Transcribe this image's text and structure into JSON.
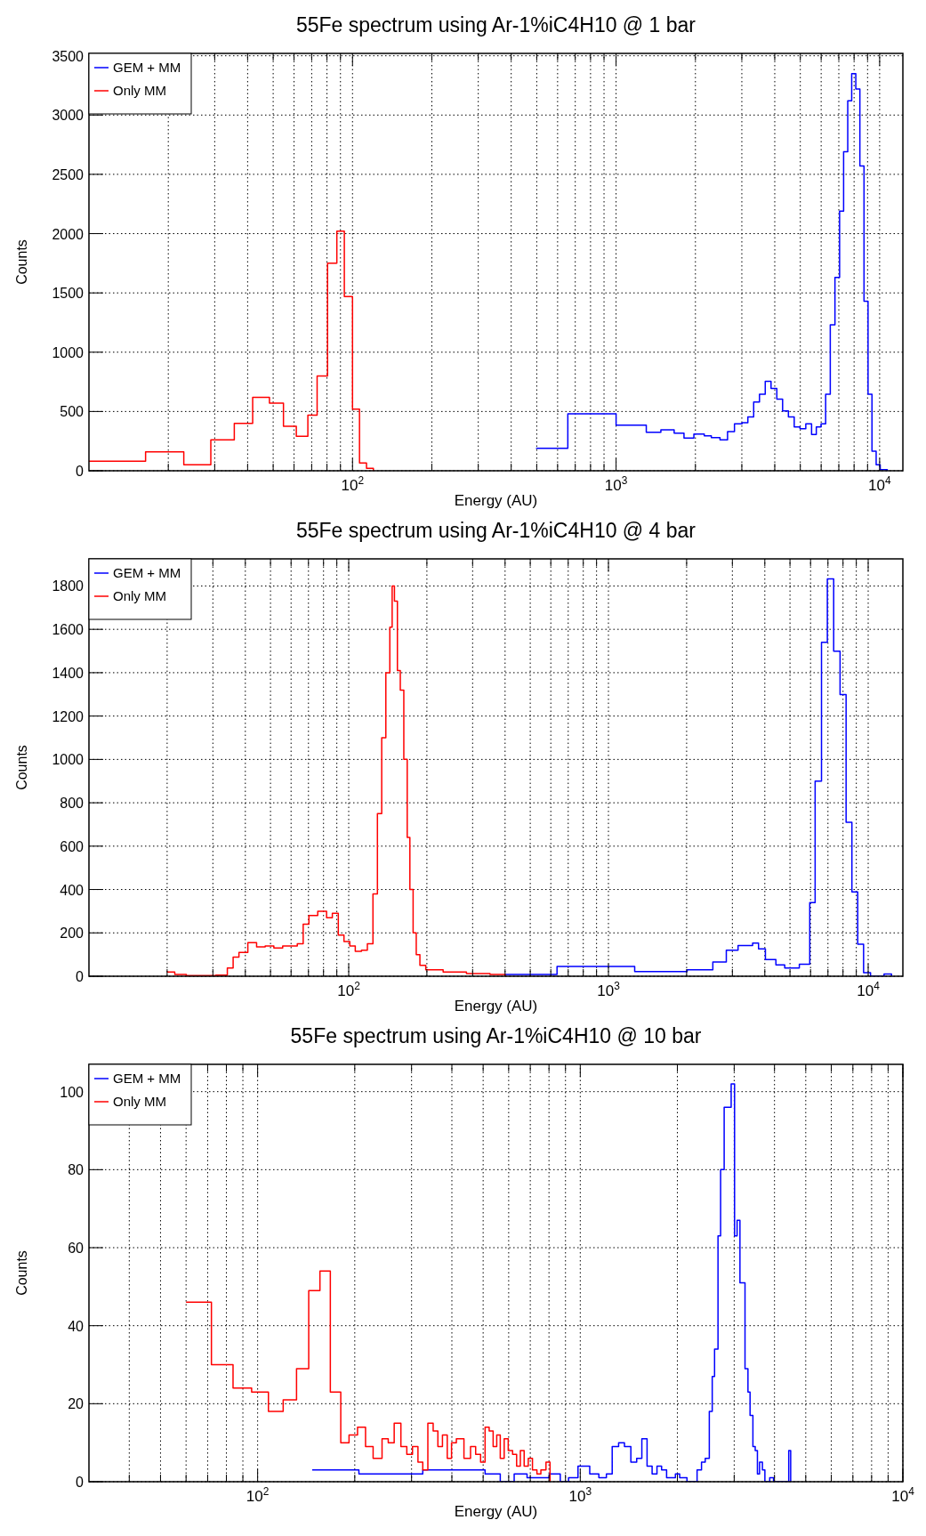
{
  "chart_data": [
    {
      "type": "step",
      "title": "55Fe spectrum using Ar-1%iC4H10 @ 1 bar",
      "xlabel": "Energy (AU)",
      "ylabel": "Counts",
      "log": "x",
      "grid": true,
      "legend": "top left",
      "xlim": [
        10,
        12250
      ],
      "ylim": [
        0,
        3520
      ],
      "xticks": [
        {
          "value": 20,
          "label": null
        },
        {
          "value": 30,
          "label": null
        },
        {
          "value": 40,
          "label": null
        },
        {
          "value": 50,
          "label": null
        },
        {
          "value": 60,
          "label": null
        },
        {
          "value": 70,
          "label": null
        },
        {
          "value": 80,
          "label": null
        },
        {
          "value": 90,
          "label": null
        },
        {
          "value": 100,
          "label": "10$^{2}$"
        },
        {
          "value": 200,
          "label": null
        },
        {
          "value": 300,
          "label": null
        },
        {
          "value": 400,
          "label": null
        },
        {
          "value": 500,
          "label": null
        },
        {
          "value": 600,
          "label": null
        },
        {
          "value": 700,
          "label": null
        },
        {
          "value": 800,
          "label": null
        },
        {
          "value": 900,
          "label": null
        },
        {
          "value": 1000,
          "label": "10$^{3}$"
        },
        {
          "value": 2000,
          "label": null
        },
        {
          "value": 3000,
          "label": null
        },
        {
          "value": 4000,
          "label": null
        },
        {
          "value": 5000,
          "label": null
        },
        {
          "value": 6000,
          "label": null
        },
        {
          "value": 7000,
          "label": null
        },
        {
          "value": 8000,
          "label": null
        },
        {
          "value": 9000,
          "label": null
        },
        {
          "value": 10000,
          "label": "10$^{4}$"
        }
      ],
      "yticks": [
        0,
        500,
        1000,
        1500,
        2000,
        2500,
        3000,
        3500
      ],
      "series": [
        {
          "name": "GEM + MM",
          "color": "#0000ff",
          "x": [
            497,
            656,
            1000,
            1302,
            1479,
            1661,
            1810,
            1973,
            2161,
            2298,
            2479,
            2648,
            2813,
            3005,
            3162,
            3327,
            3500,
            3681,
            3872,
            4073,
            4284,
            4507,
            4741,
            4987,
            5246,
            5518,
            5750,
            5994,
            6240,
            6497,
            6768,
            7048,
            7300,
            7568,
            7834,
            8120,
            8414,
            8723,
            9037,
            9352,
            9700,
            10050,
            10690
          ],
          "values": [
            190,
            480,
            385,
            325,
            345,
            318,
            275,
            310,
            295,
            280,
            260,
            330,
            395,
            405,
            455,
            580,
            645,
            755,
            695,
            605,
            505,
            455,
            370,
            355,
            395,
            305,
            370,
            395,
            645,
            1230,
            1630,
            2190,
            2690,
            3120,
            3350,
            3220,
            2570,
            1430,
            645,
            165,
            50,
            10,
            0
          ]
        },
        {
          "name": "Only MM",
          "color": "#ff0000",
          "x": [
            10,
            16.4,
            22.9,
            29,
            35.6,
            41.8,
            48.4,
            54.7,
            61.2,
            67.7,
            73.4,
            80.4,
            87.2,
            93.1,
            100,
            106.3,
            113,
            120
          ],
          "values": [
            80,
            160,
            50,
            260,
            400,
            620,
            570,
            375,
            290,
            470,
            800,
            1750,
            2020,
            1470,
            520,
            65,
            20,
            0
          ]
        }
      ]
    },
    {
      "type": "step",
      "title": "55Fe spectrum using Ar-1%iC4H10 @ 4 bar",
      "xlabel": "Energy (AU)",
      "ylabel": "Counts",
      "log": "x",
      "grid": true,
      "legend": "top left",
      "xlim": [
        10,
        13600
      ],
      "ylim": [
        0,
        1925
      ],
      "xticks": [
        {
          "value": 20,
          "label": null
        },
        {
          "value": 30,
          "label": null
        },
        {
          "value": 40,
          "label": null
        },
        {
          "value": 50,
          "label": null
        },
        {
          "value": 60,
          "label": null
        },
        {
          "value": 70,
          "label": null
        },
        {
          "value": 80,
          "label": null
        },
        {
          "value": 90,
          "label": null
        },
        {
          "value": 100,
          "label": "10$^{2}$"
        },
        {
          "value": 200,
          "label": null
        },
        {
          "value": 300,
          "label": null
        },
        {
          "value": 400,
          "label": null
        },
        {
          "value": 500,
          "label": null
        },
        {
          "value": 600,
          "label": null
        },
        {
          "value": 700,
          "label": null
        },
        {
          "value": 800,
          "label": null
        },
        {
          "value": 900,
          "label": null
        },
        {
          "value": 1000,
          "label": "10$^{3}$"
        },
        {
          "value": 2000,
          "label": null
        },
        {
          "value": 3000,
          "label": null
        },
        {
          "value": 4000,
          "label": null
        },
        {
          "value": 5000,
          "label": null
        },
        {
          "value": 6000,
          "label": null
        },
        {
          "value": 7000,
          "label": null
        },
        {
          "value": 8000,
          "label": null
        },
        {
          "value": 9000,
          "label": null
        },
        {
          "value": 10000,
          "label": "10$^{4}$"
        }
      ],
      "yticks": [
        0,
        200,
        400,
        600,
        800,
        1000,
        1200,
        1400,
        1600,
        1800
      ],
      "series": [
        {
          "name": "GEM + MM",
          "color": "#0000ff",
          "x": [
            400,
            634,
            1262,
            2009,
            2523,
            2843,
            3155,
            3590,
            3783,
            4021,
            4413,
            4772,
            5431,
            5957,
            6248,
            6611,
            6963,
            7364,
            7793,
            8222,
            8656,
            9114,
            9600,
            10210,
            11510,
            12300
          ],
          "values": [
            8,
            45,
            22,
            30,
            66,
            120,
            142,
            153,
            126,
            77,
            52,
            38,
            55,
            340,
            900,
            1540,
            1833,
            1499,
            1299,
            710,
            389,
            148,
            16,
            0,
            10,
            0
          ]
        },
        {
          "name": "Only MM",
          "color": "#ff0000",
          "x": [
            20,
            21.4,
            23.7,
            30.8,
            34.1,
            35.9,
            37.8,
            40.9,
            44.2,
            47.7,
            51.5,
            55.7,
            60.3,
            63.4,
            66.8,
            70.3,
            76,
            82.2,
            86.5,
            91.2,
            95.9,
            101,
            106,
            112,
            118,
            124,
            129,
            134,
            139,
            144,
            147,
            150,
            154,
            158,
            163,
            168,
            172,
            177,
            182,
            188,
            198,
            231,
            284,
            350,
            400
          ],
          "values": [
            20,
            8,
            3,
            5,
            38,
            88,
            110,
            155,
            135,
            140,
            130,
            140,
            140,
            150,
            240,
            280,
            300,
            270,
            290,
            190,
            160,
            140,
            115,
            120,
            150,
            380,
            750,
            1100,
            1400,
            1610,
            1800,
            1730,
            1410,
            1320,
            1000,
            640,
            400,
            200,
            100,
            50,
            30,
            20,
            12,
            8,
            0
          ]
        }
      ]
    },
    {
      "type": "step",
      "title": "55Fe spectrum using Ar-1%iC4H10 @ 10 bar",
      "xlabel": "Energy (AU)",
      "ylabel": "Counts",
      "log": "x",
      "grid": true,
      "legend": "top left",
      "xlim": [
        30,
        10000
      ],
      "ylim": [
        0,
        107
      ],
      "xticks": [
        {
          "value": 40,
          "label": null
        },
        {
          "value": 50,
          "label": null
        },
        {
          "value": 60,
          "label": null
        },
        {
          "value": 70,
          "label": null
        },
        {
          "value": 80,
          "label": null
        },
        {
          "value": 90,
          "label": null
        },
        {
          "value": 100,
          "label": "10$^{2}$"
        },
        {
          "value": 200,
          "label": null
        },
        {
          "value": 300,
          "label": null
        },
        {
          "value": 400,
          "label": null
        },
        {
          "value": 500,
          "label": null
        },
        {
          "value": 600,
          "label": null
        },
        {
          "value": 700,
          "label": null
        },
        {
          "value": 800,
          "label": null
        },
        {
          "value": 900,
          "label": null
        },
        {
          "value": 1000,
          "label": "10$^{3}$"
        },
        {
          "value": 2000,
          "label": null
        },
        {
          "value": 3000,
          "label": null
        },
        {
          "value": 4000,
          "label": null
        },
        {
          "value": 5000,
          "label": null
        },
        {
          "value": 6000,
          "label": null
        },
        {
          "value": 7000,
          "label": null
        },
        {
          "value": 8000,
          "label": null
        },
        {
          "value": 9000,
          "label": null
        },
        {
          "value": 10000,
          "label": "10$^{4}$"
        }
      ],
      "yticks": [
        0,
        20,
        40,
        60,
        80,
        100
      ],
      "series": [
        {
          "name": "GEM + MM",
          "color": "#0000ff",
          "x": [
            147.6,
            206,
            325,
            507,
            565,
            624,
            684,
            802,
            867,
            920,
            984,
            1070,
            1142,
            1205,
            1256,
            1315,
            1371,
            1435,
            1496,
            1552,
            1611,
            1670,
            1729,
            1787,
            1852,
            1972,
            2033,
            2142,
            2302,
            2376,
            2440,
            2512,
            2565,
            2608,
            2673,
            2723,
            2793,
            2864,
            2936,
            3008,
            3063,
            3126,
            3241,
            3310,
            3360,
            3429,
            3486,
            3541,
            3595,
            3670,
            3735,
            3866,
            3973,
            4428,
            4490
          ],
          "values": [
            3,
            2,
            3,
            2,
            0,
            2,
            1,
            2,
            0,
            1,
            4,
            2,
            1,
            2,
            9,
            10,
            9,
            5,
            6,
            11,
            4,
            2,
            4,
            3,
            1,
            2,
            1,
            0,
            3,
            5,
            6,
            18,
            27,
            34,
            63,
            80,
            96,
            96,
            102,
            63,
            67,
            51,
            29,
            23,
            17,
            9,
            8,
            2,
            5,
            3,
            0,
            1,
            0,
            8,
            0
          ]
        },
        {
          "name": "Only MM",
          "color": "#ff0000",
          "x": [
            60,
            71.9,
            83.9,
            95.8,
            108,
            120,
            132,
            144,
            156,
            168,
            181,
            192,
            204,
            216,
            228,
            243,
            254,
            265,
            278,
            290,
            302,
            314,
            325,
            337,
            350,
            362,
            374,
            387,
            399,
            413,
            436,
            457,
            474,
            491,
            507,
            522,
            537,
            551,
            565,
            581,
            598,
            617,
            635,
            652,
            670,
            690,
            711,
            734,
            755,
            783,
            806
          ],
          "values": [
            46,
            30,
            24,
            23,
            18,
            21,
            29,
            49,
            54,
            23,
            10,
            12,
            14,
            9,
            6,
            11,
            10,
            15,
            9,
            7,
            9,
            5,
            3,
            15,
            13,
            9,
            12,
            6,
            10,
            11,
            6,
            9,
            7,
            5,
            14,
            13,
            9,
            12,
            6,
            11,
            8,
            7,
            4,
            8,
            4,
            6,
            3,
            2,
            3,
            5,
            0
          ]
        }
      ]
    }
  ]
}
